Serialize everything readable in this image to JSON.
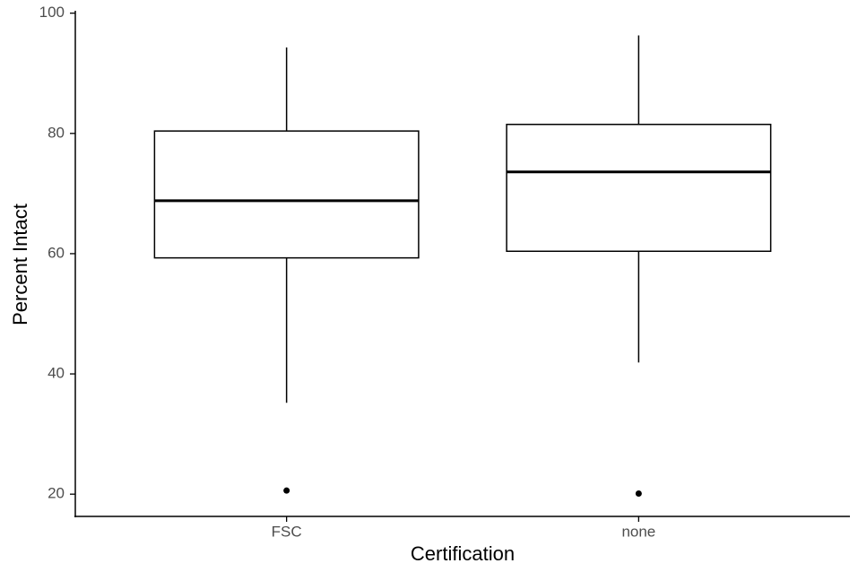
{
  "chart_data": {
    "type": "box",
    "x_label": "Certification",
    "y_label": "Percent Intact",
    "categories": [
      "FSC",
      "none"
    ],
    "boxes": [
      {
        "whisker_low": 35.2,
        "q1": 59.3,
        "median": 68.8,
        "q3": 80.4,
        "whisker_high": 94.3,
        "outliers": [
          20.6
        ]
      },
      {
        "whisker_low": 41.9,
        "q1": 60.4,
        "median": 73.6,
        "q3": 81.5,
        "whisker_high": 96.3,
        "outliers": [
          20.1
        ]
      }
    ],
    "color": "#000000",
    "ylim": [
      16.3,
      100.4
    ],
    "yticks": [
      20,
      40,
      60,
      80,
      100
    ]
  }
}
